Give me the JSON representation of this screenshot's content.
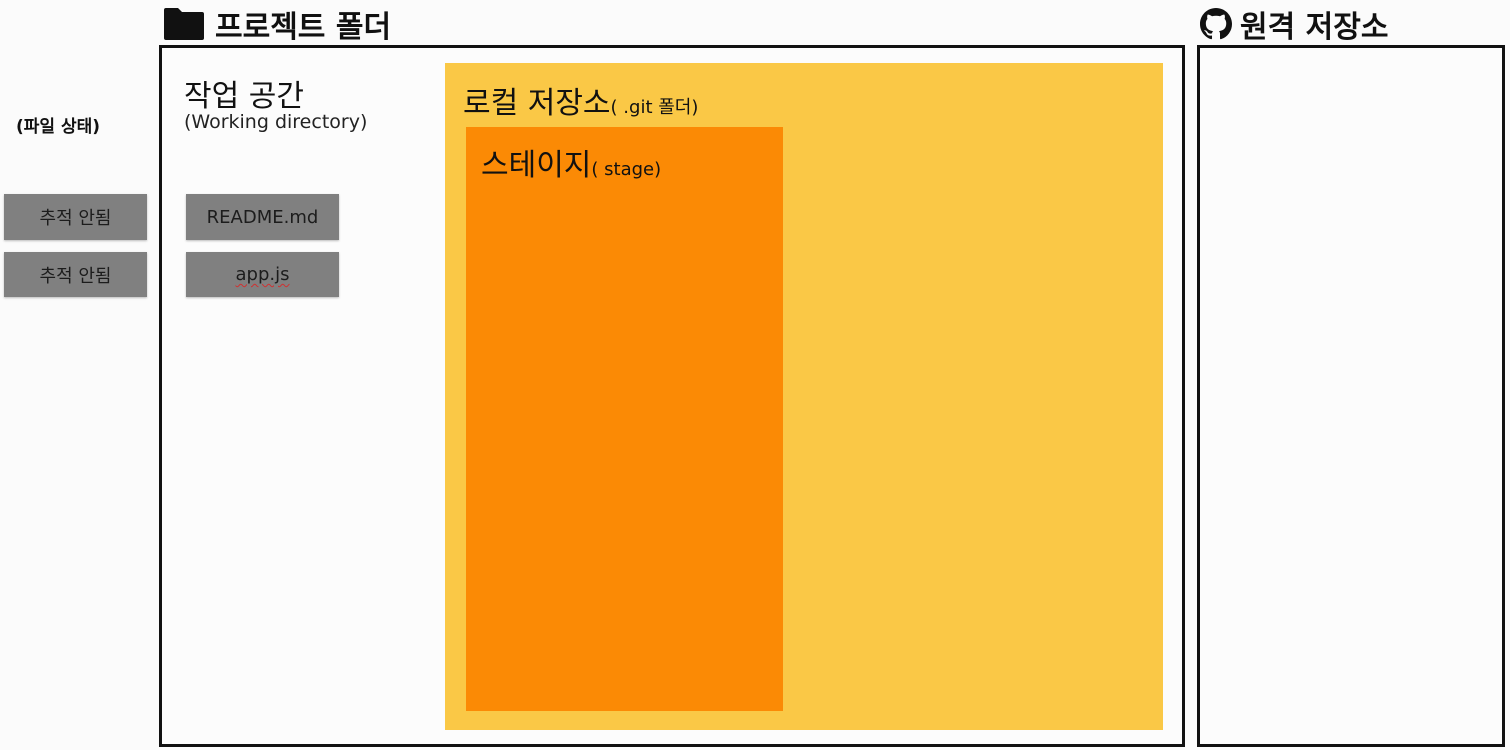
{
  "project_folder": {
    "title": "프로젝트 폴더",
    "icon": "folder-icon"
  },
  "remote_repo": {
    "title": "원격 저장소",
    "icon": "github-icon"
  },
  "file_status": {
    "label": "(파일 상태)",
    "items": [
      "추적 안됨",
      "추적 안됨"
    ]
  },
  "working_directory": {
    "title": "작업 공간",
    "subtitle": "(Working directory)",
    "files": [
      "README.md",
      "app.js"
    ]
  },
  "local_repo": {
    "title": "로컬 저장소",
    "subtitle": "( .git 폴더)"
  },
  "stage": {
    "title": "스테이지",
    "subtitle": "( stage)"
  },
  "colors": {
    "local_repo": "#fac846",
    "stage": "#fb8a05",
    "chip": "#808080",
    "border": "#111111"
  }
}
